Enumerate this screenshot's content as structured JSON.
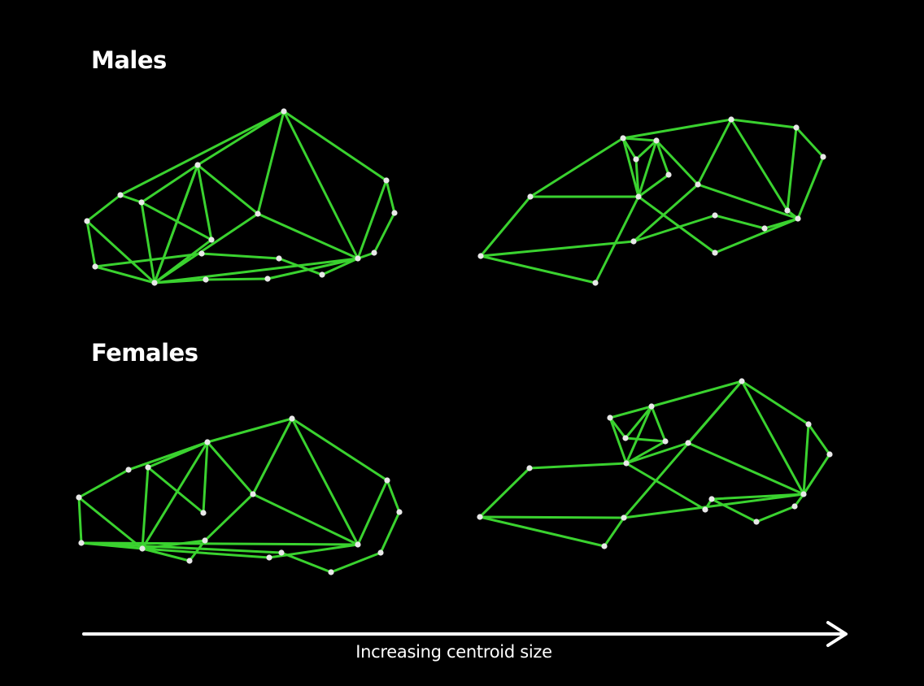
{
  "groups": {
    "males": {
      "title": "Males"
    },
    "females": {
      "title": "Females"
    }
  },
  "axis": {
    "label": "Increasing centroid size"
  },
  "colors": {
    "background": "#000000",
    "wireframe": "#3ad22f",
    "landmark": "#e8e8e8",
    "arrow": "#ffffff",
    "text": "#ffffff"
  }
}
